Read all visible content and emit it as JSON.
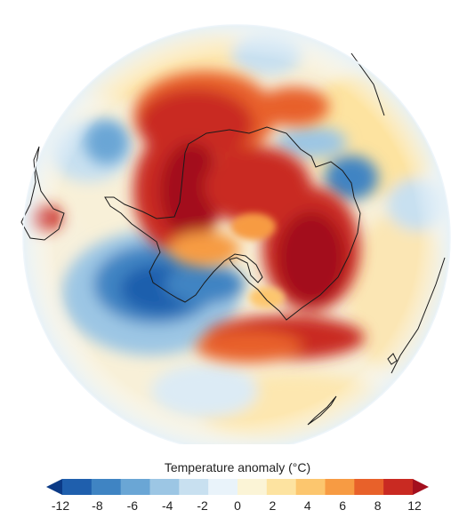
{
  "legend": {
    "title": "Temperature anomaly (°C)",
    "ticks": [
      "-12",
      "-8",
      "-6",
      "-4",
      "-2",
      "0",
      "2",
      "4",
      "6",
      "8",
      "12"
    ],
    "colors": [
      "#0b3a86",
      "#1f5fad",
      "#3f84c3",
      "#6aa6d5",
      "#9cc6e4",
      "#c8e0f0",
      "#e9f3fa",
      "#fbf4d6",
      "#fde3a0",
      "#fcc66e",
      "#f79b43",
      "#e8612a",
      "#c92a22",
      "#a30f1e"
    ]
  }
}
